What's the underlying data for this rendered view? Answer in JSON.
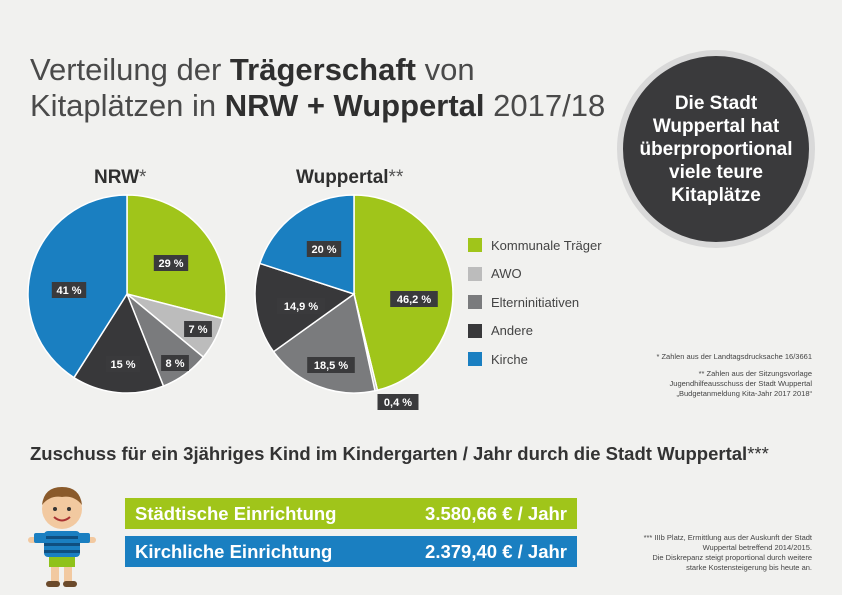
{
  "title": {
    "line1_pre": "Verteilung der ",
    "line1_bold": "Trägerschaft",
    "line1_post": " von",
    "line2_pre": "Kitaplätzen in ",
    "line2_bold": "NRW + Wuppertal",
    "line2_post": " 2017/18"
  },
  "bubble": {
    "text": "Die Stadt Wuppertal hat überproportional viele teure Kitaplätze"
  },
  "colors": {
    "kommunale": "#a0c51a",
    "awo": "#bcbcbc",
    "eltern": "#7a7b7d",
    "andere": "#38383a",
    "kirche": "#1a7fc1"
  },
  "chart_data": [
    {
      "type": "pie",
      "title": "NRW",
      "title_suffix": "*",
      "slices": [
        {
          "label": "Kommunale Träger",
          "value": 29,
          "display": "29 %",
          "color": "#a0c51a"
        },
        {
          "label": "AWO",
          "value": 7,
          "display": "7 %",
          "color": "#bcbcbc"
        },
        {
          "label": "Elterninitiativen",
          "value": 8,
          "display": "8 %",
          "color": "#7a7b7d"
        },
        {
          "label": "Andere",
          "value": 15,
          "display": "15 %",
          "color": "#38383a"
        },
        {
          "label": "Kirche",
          "value": 41,
          "display": "41 %",
          "color": "#1a7fc1"
        }
      ]
    },
    {
      "type": "pie",
      "title": "Wuppertal",
      "title_suffix": "**",
      "slices": [
        {
          "label": "Kommunale Träger",
          "value": 46.2,
          "display": "46,2 %",
          "color": "#a0c51a"
        },
        {
          "label": "AWO",
          "value": 0.4,
          "display": "0,4 %",
          "color": "#bcbcbc"
        },
        {
          "label": "Elterninitiativen",
          "value": 18.5,
          "display": "18,5 %",
          "color": "#7a7b7d"
        },
        {
          "label": "Andere",
          "value": 14.9,
          "display": "14,9 %",
          "color": "#38383a"
        },
        {
          "label": "Kirche",
          "value": 20,
          "display": "20 %",
          "color": "#1a7fc1"
        }
      ]
    }
  ],
  "legend": [
    {
      "label": "Kommunale Träger",
      "color": "#a0c51a"
    },
    {
      "label": "AWO",
      "color": "#bcbcbc"
    },
    {
      "label": "Elterninitiativen",
      "color": "#7a7b7d"
    },
    {
      "label": "Andere",
      "color": "#38383a"
    },
    {
      "label": "Kirche",
      "color": "#1a7fc1"
    }
  ],
  "footnotes": {
    "nrw": "* Zahlen aus der Landtagsdrucksache 16/3661",
    "wup1": "** Zahlen aus der Sitzungsvorlage",
    "wup2": "Jugendhilfeausschuss der Stadt Wuppertal",
    "wup3": "„Budgetanmeldung Kita-Jahr 2017 2018“",
    "z1": "*** IIIb Platz, Ermittlung aus der Auskunft der Stadt",
    "z2": "Wuppertal betreffend 2014/2015.",
    "z3": "Die Diskrepanz steigt proportional durch weitere",
    "z4": "starke Kostensteigerung bis heute an."
  },
  "subsidy": {
    "heading": "Zuschuss für ein 3jähriges Kind im Kindergarten / Jahr durch die Stadt Wuppertal",
    "heading_suffix": "***",
    "rows": [
      {
        "label": "Städtische Einrichtung",
        "amount": "3.580,66 € / Jahr"
      },
      {
        "label": "Kirchliche Einrichtung",
        "amount": "2.379,40 € / Jahr"
      }
    ]
  }
}
